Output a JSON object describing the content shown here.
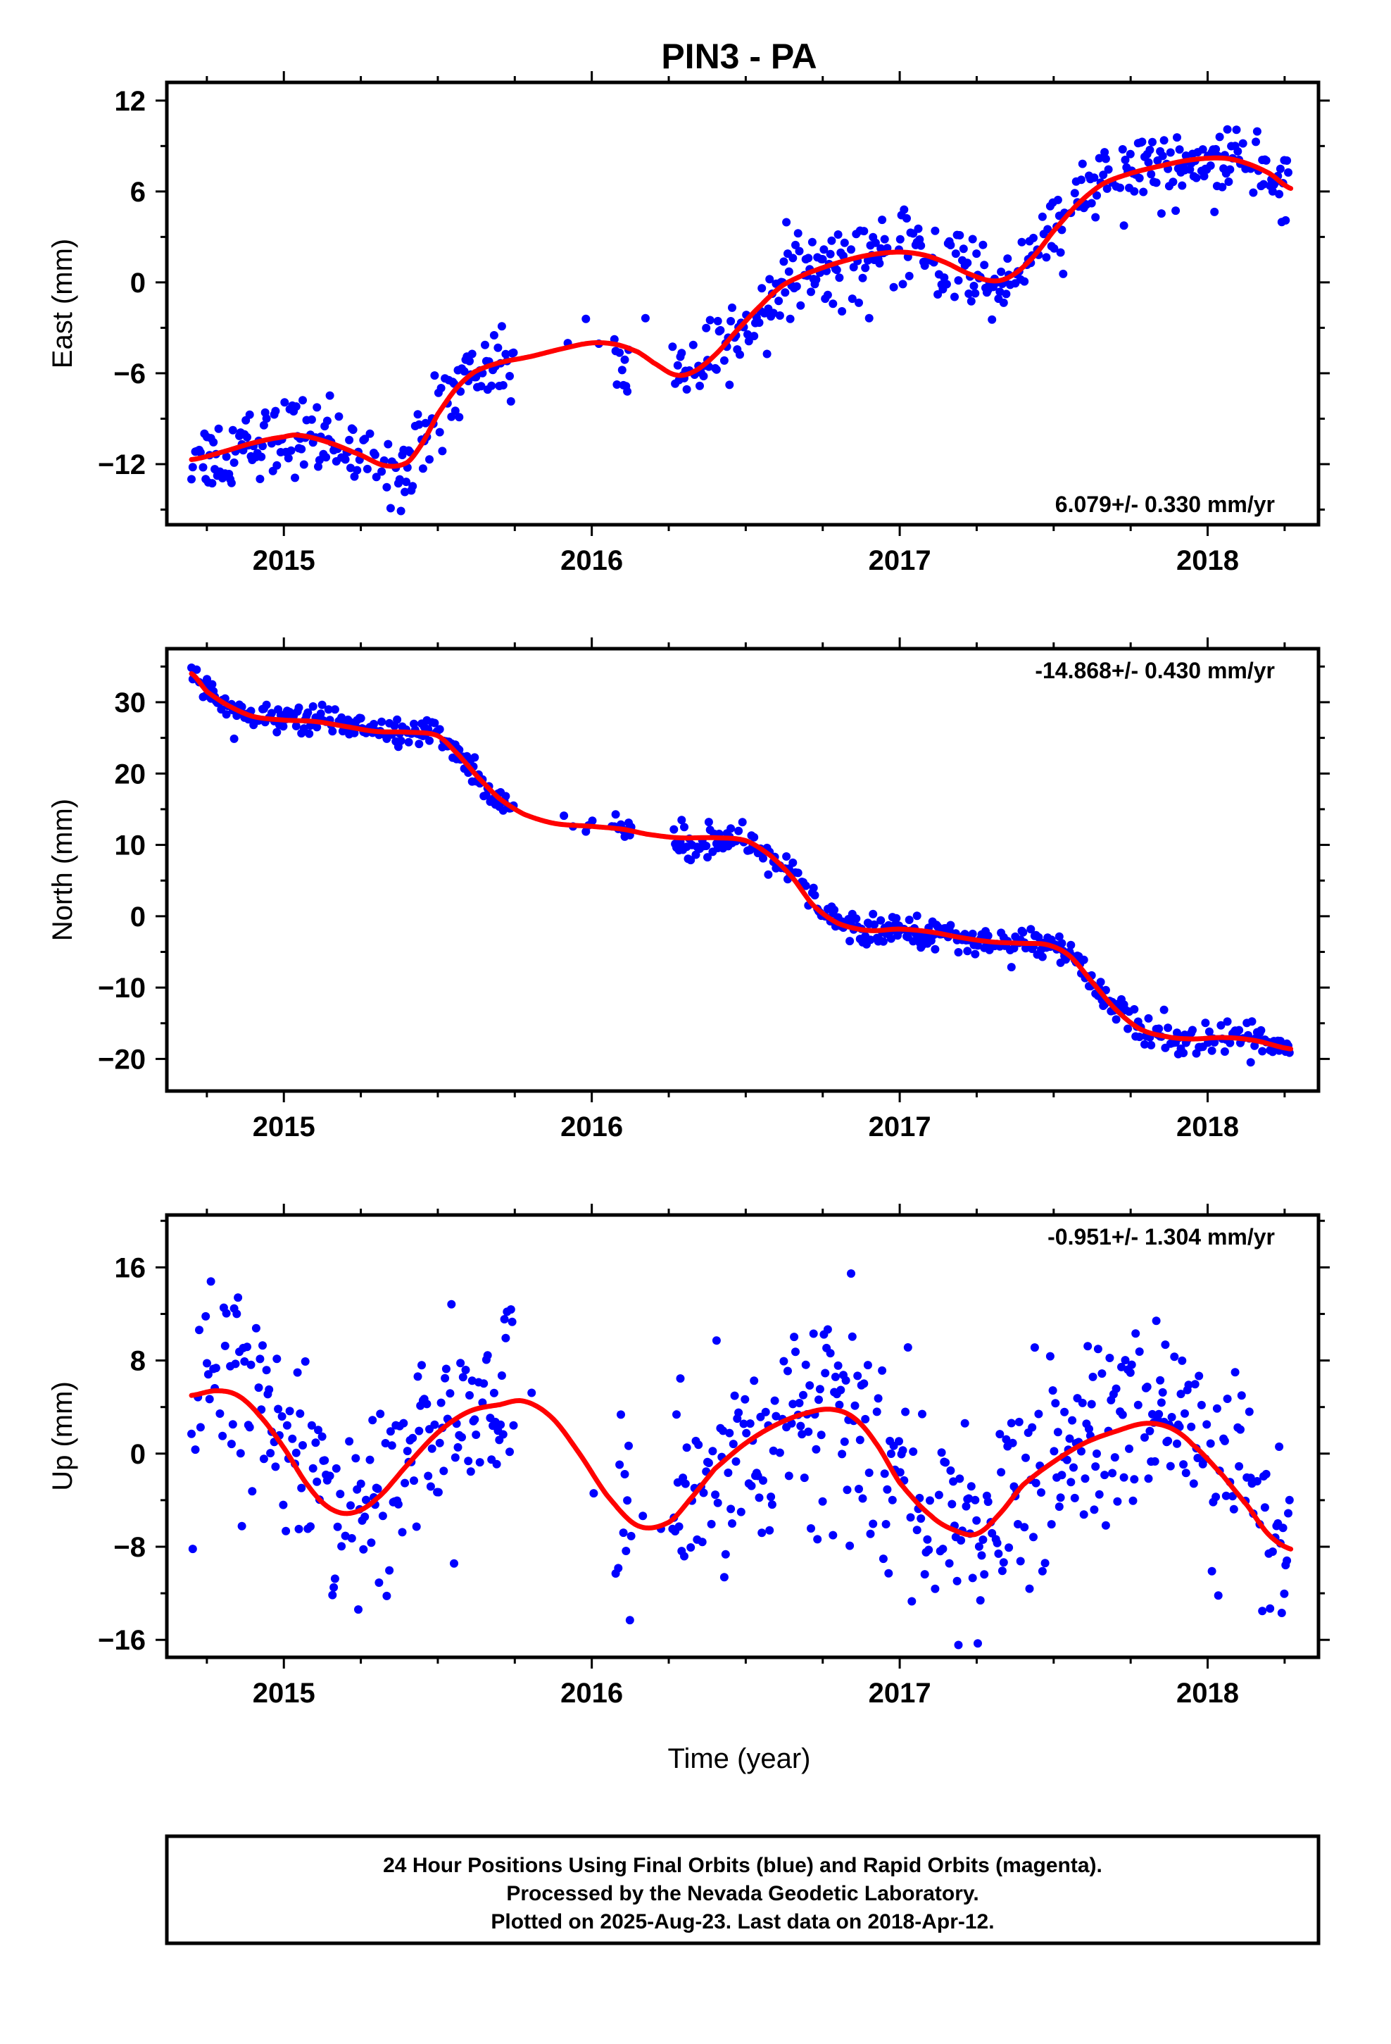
{
  "title": "PIN3 - PA",
  "xlabel": "Time (year)",
  "footer": [
    "24 Hour Positions Using Final Orbits (blue) and Rapid Orbits (magenta).",
    "Processed by the Nevada Geodetic Laboratory.",
    "Plotted on 2025-Aug-23. Last data on 2018-Apr-12."
  ],
  "colors": {
    "points": "#0000ff",
    "model": "#ff0000",
    "frame": "#000000"
  },
  "chart_data": [
    {
      "type": "scatter",
      "ylabel": "East (mm)",
      "rate": "6.079+/- 0.330 mm/yr",
      "xlim": [
        2014.62,
        2018.36
      ],
      "ylim": [
        -16,
        13.2
      ],
      "xticks": [
        2015,
        2016,
        2017,
        2018
      ],
      "yticks": [
        -12,
        -6,
        0,
        6,
        12
      ],
      "series": [
        {
          "values": [
            [
              2014.7,
              -11.7
            ],
            [
              2014.8,
              -11.2
            ],
            [
              2014.9,
              -10.6
            ],
            [
              2015.0,
              -10.2
            ],
            [
              2015.05,
              -10.1
            ],
            [
              2015.15,
              -10.6
            ],
            [
              2015.25,
              -11.4
            ],
            [
              2015.33,
              -12.1
            ],
            [
              2015.4,
              -11.9
            ],
            [
              2015.45,
              -10.6
            ],
            [
              2015.5,
              -8.7
            ],
            [
              2015.56,
              -7.0
            ],
            [
              2015.62,
              -5.9
            ],
            [
              2015.7,
              -5.3
            ],
            [
              2015.8,
              -4.9
            ],
            [
              2015.9,
              -4.4
            ],
            [
              2016.0,
              -4.0
            ],
            [
              2016.08,
              -4.1
            ],
            [
              2016.15,
              -4.6
            ],
            [
              2016.2,
              -5.3
            ],
            [
              2016.27,
              -6.1
            ],
            [
              2016.33,
              -5.9
            ],
            [
              2016.4,
              -4.8
            ],
            [
              2016.47,
              -3.2
            ],
            [
              2016.55,
              -1.5
            ],
            [
              2016.62,
              -0.2
            ],
            [
              2016.7,
              0.6
            ],
            [
              2016.8,
              1.3
            ],
            [
              2016.9,
              1.8
            ],
            [
              2017.0,
              2.0
            ],
            [
              2017.08,
              1.8
            ],
            [
              2017.15,
              1.3
            ],
            [
              2017.22,
              0.6
            ],
            [
              2017.3,
              0.1
            ],
            [
              2017.36,
              0.4
            ],
            [
              2017.43,
              1.6
            ],
            [
              2017.5,
              3.4
            ],
            [
              2017.58,
              5.2
            ],
            [
              2017.66,
              6.5
            ],
            [
              2017.75,
              7.2
            ],
            [
              2017.85,
              7.7
            ],
            [
              2017.95,
              8.1
            ],
            [
              2018.05,
              8.2
            ],
            [
              2018.12,
              7.9
            ],
            [
              2018.2,
              7.2
            ],
            [
              2018.27,
              6.2
            ]
          ]
        }
      ]
    },
    {
      "type": "scatter",
      "ylabel": "North (mm)",
      "rate": "-14.868+/- 0.430 mm/yr",
      "xlim": [
        2014.62,
        2018.36
      ],
      "ylim": [
        -24.5,
        37.5
      ],
      "xticks": [
        2015,
        2016,
        2017,
        2018
      ],
      "yticks": [
        -20,
        -10,
        0,
        10,
        20,
        30
      ],
      "series": [
        {
          "values": [
            [
              2014.7,
              34.0
            ],
            [
              2014.75,
              31.5
            ],
            [
              2014.82,
              29.5
            ],
            [
              2014.9,
              28.0
            ],
            [
              2015.0,
              27.5
            ],
            [
              2015.1,
              27.3
            ],
            [
              2015.2,
              26.6
            ],
            [
              2015.3,
              25.9
            ],
            [
              2015.4,
              25.8
            ],
            [
              2015.5,
              25.3
            ],
            [
              2015.57,
              22.5
            ],
            [
              2015.63,
              19.5
            ],
            [
              2015.7,
              16.5
            ],
            [
              2015.78,
              14.3
            ],
            [
              2015.88,
              13.0
            ],
            [
              2016.0,
              12.6
            ],
            [
              2016.1,
              12.2
            ],
            [
              2016.18,
              11.5
            ],
            [
              2016.28,
              11.0
            ],
            [
              2016.4,
              11.0
            ],
            [
              2016.5,
              10.6
            ],
            [
              2016.58,
              8.5
            ],
            [
              2016.65,
              5.5
            ],
            [
              2016.72,
              1.5
            ],
            [
              2016.8,
              -1.0
            ],
            [
              2016.9,
              -2.0
            ],
            [
              2017.0,
              -1.8
            ],
            [
              2017.1,
              -2.2
            ],
            [
              2017.2,
              -3.0
            ],
            [
              2017.3,
              -3.6
            ],
            [
              2017.4,
              -3.8
            ],
            [
              2017.48,
              -4.0
            ],
            [
              2017.55,
              -5.5
            ],
            [
              2017.62,
              -9.0
            ],
            [
              2017.7,
              -13.0
            ],
            [
              2017.78,
              -15.8
            ],
            [
              2017.87,
              -16.9
            ],
            [
              2017.95,
              -17.2
            ],
            [
              2018.05,
              -17.0
            ],
            [
              2018.15,
              -17.4
            ],
            [
              2018.27,
              -18.6
            ]
          ]
        }
      ]
    },
    {
      "type": "scatter",
      "ylabel": "Up (mm)",
      "rate": "-0.951+/- 1.304 mm/yr",
      "xlim": [
        2014.62,
        2018.36
      ],
      "ylim": [
        -17.5,
        20.5
      ],
      "xticks": [
        2015,
        2016,
        2017,
        2018
      ],
      "yticks": [
        -16,
        -8,
        0,
        8,
        16
      ],
      "series": [
        {
          "values": [
            [
              2014.7,
              5.0
            ],
            [
              2014.78,
              5.4
            ],
            [
              2014.85,
              5.0
            ],
            [
              2014.92,
              3.3
            ],
            [
              2015.0,
              0.5
            ],
            [
              2015.08,
              -2.8
            ],
            [
              2015.15,
              -4.7
            ],
            [
              2015.22,
              -5.1
            ],
            [
              2015.3,
              -3.9
            ],
            [
              2015.4,
              -1.0
            ],
            [
              2015.5,
              1.8
            ],
            [
              2015.6,
              3.6
            ],
            [
              2015.7,
              4.2
            ],
            [
              2015.78,
              4.5
            ],
            [
              2015.87,
              3.1
            ],
            [
              2015.96,
              0.0
            ],
            [
              2016.05,
              -3.6
            ],
            [
              2016.15,
              -6.2
            ],
            [
              2016.25,
              -5.9
            ],
            [
              2016.33,
              -3.6
            ],
            [
              2016.4,
              -1.3
            ],
            [
              2016.5,
              0.9
            ],
            [
              2016.6,
              2.5
            ],
            [
              2016.7,
              3.5
            ],
            [
              2016.78,
              3.8
            ],
            [
              2016.85,
              3.1
            ],
            [
              2016.92,
              1.0
            ],
            [
              2017.0,
              -2.5
            ],
            [
              2017.1,
              -5.3
            ],
            [
              2017.18,
              -6.6
            ],
            [
              2017.25,
              -6.9
            ],
            [
              2017.32,
              -5.3
            ],
            [
              2017.4,
              -2.7
            ],
            [
              2017.5,
              -0.7
            ],
            [
              2017.6,
              0.9
            ],
            [
              2017.7,
              1.9
            ],
            [
              2017.8,
              2.6
            ],
            [
              2017.88,
              2.2
            ],
            [
              2017.95,
              0.8
            ],
            [
              2018.05,
              -1.9
            ],
            [
              2018.13,
              -4.5
            ],
            [
              2018.2,
              -7.0
            ],
            [
              2018.27,
              -8.2
            ]
          ]
        }
      ]
    }
  ]
}
